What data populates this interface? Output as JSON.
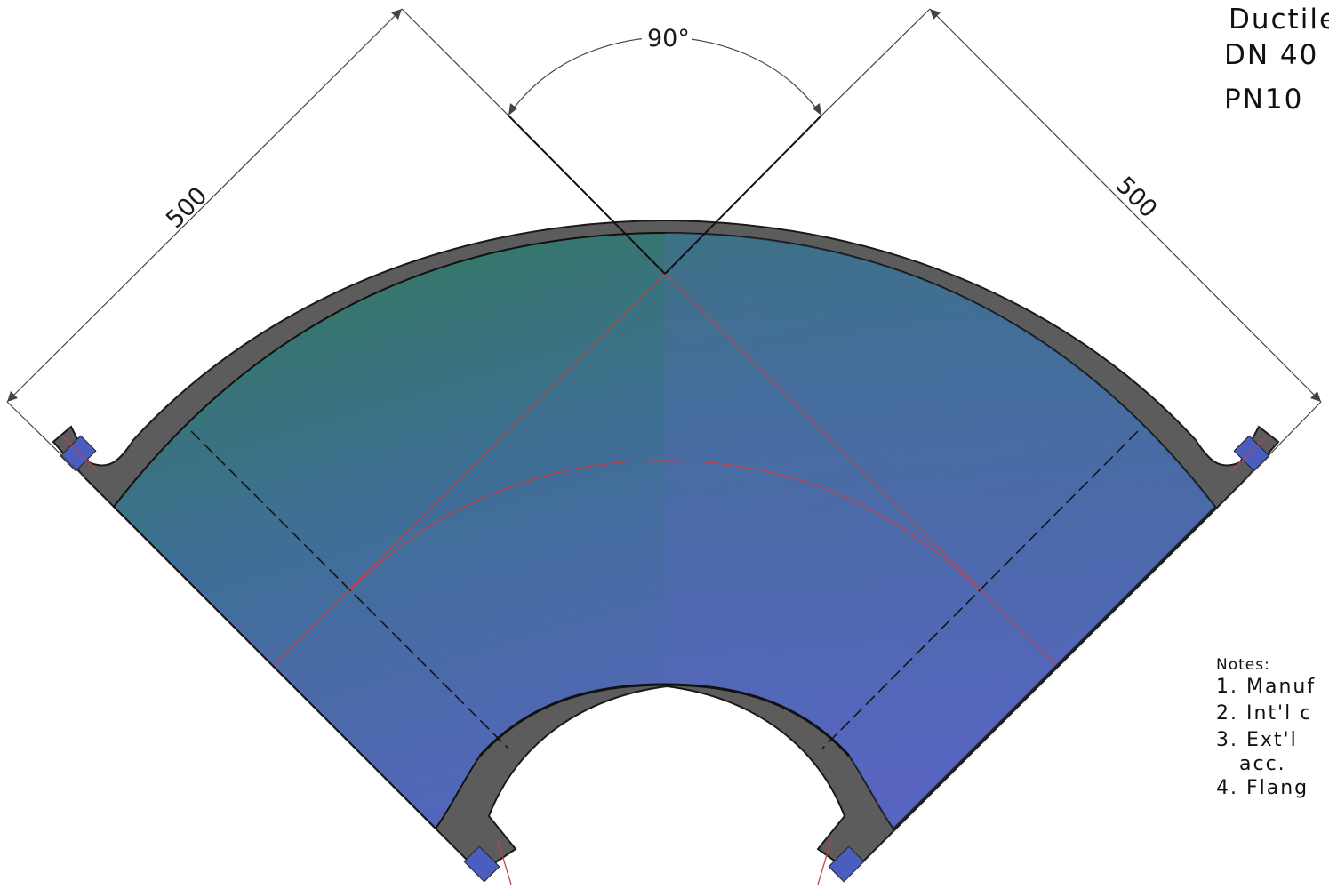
{
  "dimensions": {
    "angle": "90°",
    "left_length": "500",
    "right_length": "500"
  },
  "title_block": {
    "line1": "Ductile",
    "line2": "DN  40",
    "line3": "PN10"
  },
  "notes": {
    "heading": "Notes:",
    "items": [
      "1.  Manuf",
      "2.  Int'l  c",
      "3.  Ext'l",
      "acc.",
      "4.  Flang"
    ]
  },
  "colors": {
    "body_top": "#2f7a55",
    "body_mid": "#3f6f95",
    "body_bottom": "#5864c4",
    "wall": "#5c5c5c",
    "centerline": "#c0404a",
    "dimension": "#444444"
  }
}
